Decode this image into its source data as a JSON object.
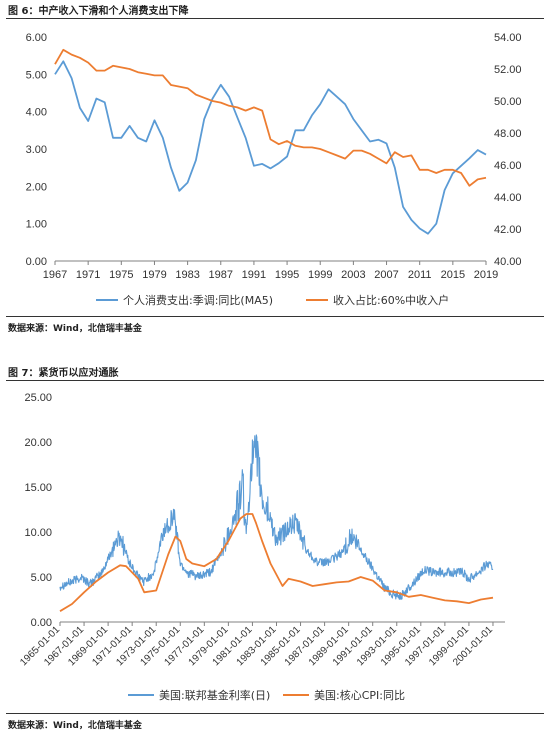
{
  "chart_data": [
    {
      "type": "line",
      "title": "图 6：中产收入下滑和个人消费支出下降",
      "source": "数据来源：Wind，北信瑞丰基金",
      "x_tick_labels": [
        "1967",
        "1971",
        "1975",
        "1979",
        "1983",
        "1987",
        "1991",
        "1995",
        "1999",
        "2003",
        "2007",
        "2011",
        "2015",
        "2019"
      ],
      "xlim": [
        1967,
        2019
      ],
      "y_left": {
        "lim": [
          0,
          6
        ],
        "ticks": [
          "0.00",
          "1.00",
          "2.00",
          "3.00",
          "4.00",
          "5.00",
          "6.00"
        ]
      },
      "y_right": {
        "lim": [
          40,
          54
        ],
        "ticks": [
          "40.00",
          "42.00",
          "44.00",
          "46.00",
          "48.00",
          "50.00",
          "52.00",
          "54.00"
        ]
      },
      "legend_position": "bottom",
      "grid": false,
      "series": [
        {
          "name": "个人消费支出:季调:同比(MA5)",
          "color": "#5b9bd5",
          "axis": "left",
          "x": [
            1967,
            1968,
            1969,
            1970,
            1971,
            1972,
            1973,
            1974,
            1975,
            1976,
            1977,
            1978,
            1979,
            1980,
            1981,
            1982,
            1983,
            1984,
            1985,
            1986,
            1987,
            1988,
            1989,
            1990,
            1991,
            1992,
            1993,
            1994,
            1995,
            1996,
            1997,
            1998,
            1999,
            2000,
            2001,
            2002,
            2003,
            2004,
            2005,
            2006,
            2007,
            2008,
            2009,
            2010,
            2011,
            2012,
            2013,
            2014,
            2015,
            2016,
            2017,
            2018,
            2019
          ],
          "values": [
            5.0,
            5.35,
            4.9,
            4.1,
            3.75,
            4.35,
            4.25,
            3.3,
            3.3,
            3.62,
            3.3,
            3.2,
            3.77,
            3.3,
            2.5,
            1.88,
            2.1,
            2.7,
            3.8,
            4.35,
            4.72,
            4.4,
            3.85,
            3.3,
            2.55,
            2.6,
            2.48,
            2.62,
            2.8,
            3.5,
            3.5,
            3.9,
            4.2,
            4.6,
            4.4,
            4.2,
            3.8,
            3.5,
            3.2,
            3.25,
            3.15,
            2.5,
            1.45,
            1.1,
            0.87,
            0.73,
            1.0,
            1.9,
            2.35,
            2.55,
            2.75,
            2.97,
            2.85
          ]
        },
        {
          "name": "收入占比:60%中收入户",
          "color": "#ed7d31",
          "axis": "right",
          "x": [
            1967,
            1968,
            1969,
            1970,
            1971,
            1972,
            1973,
            1974,
            1975,
            1976,
            1977,
            1978,
            1979,
            1980,
            1981,
            1982,
            1983,
            1984,
            1985,
            1986,
            1987,
            1988,
            1989,
            1990,
            1991,
            1992,
            1993,
            1994,
            1995,
            1996,
            1997,
            1998,
            1999,
            2000,
            2001,
            2002,
            2003,
            2004,
            2005,
            2006,
            2007,
            2008,
            2009,
            2010,
            2011,
            2012,
            2013,
            2014,
            2015,
            2016,
            2017,
            2018,
            2019
          ],
          "values": [
            52.3,
            53.2,
            52.9,
            52.7,
            52.4,
            51.9,
            51.9,
            52.2,
            52.1,
            52.0,
            51.8,
            51.7,
            51.6,
            51.6,
            51.0,
            50.9,
            50.8,
            50.4,
            50.2,
            50.0,
            49.9,
            49.7,
            49.6,
            49.4,
            49.6,
            49.4,
            47.6,
            47.3,
            47.5,
            47.2,
            47.1,
            47.1,
            47.0,
            46.8,
            46.6,
            46.4,
            46.9,
            46.9,
            46.7,
            46.4,
            46.1,
            46.8,
            46.5,
            46.6,
            45.7,
            45.7,
            45.5,
            45.7,
            45.7,
            45.5,
            44.7,
            45.1,
            45.2
          ]
        }
      ]
    },
    {
      "type": "line",
      "title": "图 7：紧货币以应对通胀",
      "source": "数据来源：Wind，北信瑞丰基金",
      "x_tick_labels": [
        "1965-01-01",
        "1967-01-01",
        "1969-01-01",
        "1971-01-01",
        "1973-01-01",
        "1975-01-01",
        "1977-01-01",
        "1979-01-01",
        "1981-01-01",
        "1983-01-01",
        "1985-01-01",
        "1987-01-01",
        "1989-01-01",
        "1991-01-01",
        "1993-01-01",
        "1995-01-01",
        "1997-01-01",
        "1999-01-01",
        "2001-01-01"
      ],
      "xlim": [
        1965,
        2002
      ],
      "y": {
        "lim": [
          0,
          25
        ],
        "ticks": [
          "0.00",
          "5.00",
          "10.00",
          "15.00",
          "20.00",
          "25.00"
        ]
      },
      "legend_position": "bottom",
      "grid": false,
      "series": [
        {
          "name": "美国:联邦基金利率(日)",
          "color": "#5b9bd5",
          "frequency": "daily",
          "x": [
            1965.0,
            1966.0,
            1966.8,
            1967.5,
            1968.5,
            1969.5,
            1970.0,
            1970.8,
            1971.5,
            1972.0,
            1972.8,
            1973.6,
            1974.5,
            1975.0,
            1975.6,
            1976.5,
            1977.5,
            1978.5,
            1979.5,
            1980.2,
            1980.5,
            1980.9,
            1981.4,
            1981.8,
            1982.5,
            1983.0,
            1984.0,
            1984.6,
            1985.5,
            1986.5,
            1987.5,
            1988.5,
            1989.2,
            1990.0,
            1991.0,
            1992.0,
            1992.8,
            1993.5,
            1994.5,
            1995.2,
            1996.0,
            1997.0,
            1998.5,
            1999.0,
            2000.0,
            2000.5,
            2001.0
          ],
          "values": [
            4.0,
            4.5,
            5.0,
            4.2,
            5.5,
            8.5,
            9.5,
            6.5,
            5.0,
            4.5,
            5.5,
            10.0,
            12.0,
            6.5,
            5.5,
            5.0,
            5.5,
            8.0,
            11.5,
            15.0,
            9.5,
            18.0,
            18.5,
            13.5,
            11.5,
            9.0,
            10.5,
            11.0,
            8.0,
            6.5,
            6.8,
            7.8,
            9.5,
            8.0,
            6.0,
            3.8,
            3.0,
            3.0,
            4.5,
            5.8,
            5.5,
            5.5,
            5.5,
            4.8,
            5.8,
            6.5,
            6.0
          ]
        },
        {
          "name": "美国:核心CPI:同比",
          "color": "#ed7d31",
          "frequency": "monthly",
          "x": [
            1965.0,
            1966.0,
            1967.0,
            1968.0,
            1969.0,
            1970.0,
            1970.5,
            1971.5,
            1972.0,
            1973.0,
            1974.0,
            1974.6,
            1975.0,
            1975.5,
            1976.0,
            1977.0,
            1978.0,
            1979.0,
            1980.0,
            1980.5,
            1981.0,
            1981.3,
            1981.8,
            1982.5,
            1983.5,
            1984.0,
            1985.0,
            1986.0,
            1987.0,
            1988.0,
            1989.0,
            1990.0,
            1991.0,
            1992.0,
            1993.0,
            1994.0,
            1995.0,
            1996.0,
            1997.0,
            1998.0,
            1999.0,
            2000.0,
            2001.0
          ],
          "values": [
            1.2,
            2.0,
            3.3,
            4.5,
            5.5,
            6.3,
            6.2,
            4.8,
            3.3,
            3.5,
            7.5,
            9.5,
            9.0,
            7.0,
            6.5,
            6.2,
            7.0,
            9.0,
            11.5,
            12.0,
            12.0,
            11.0,
            9.0,
            6.5,
            4.0,
            4.8,
            4.5,
            4.0,
            4.2,
            4.4,
            4.5,
            5.0,
            4.6,
            3.5,
            3.3,
            2.8,
            3.0,
            2.7,
            2.4,
            2.3,
            2.1,
            2.5,
            2.7
          ]
        }
      ]
    }
  ]
}
